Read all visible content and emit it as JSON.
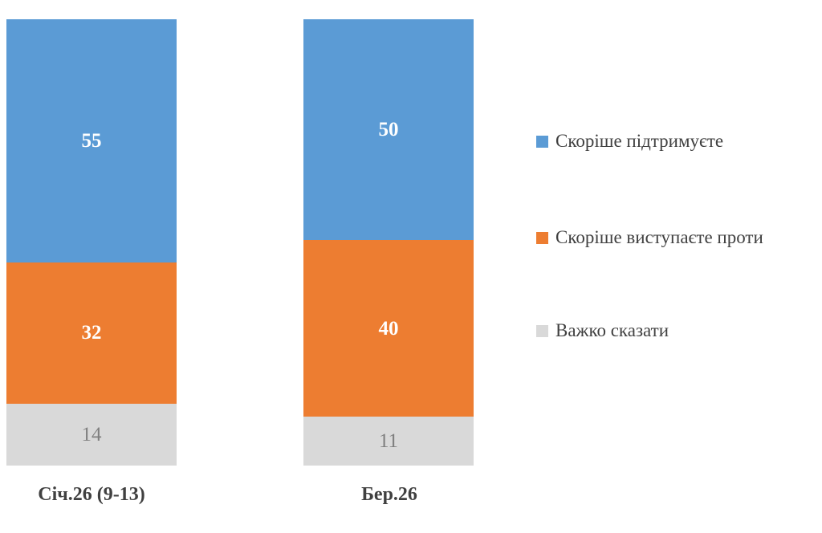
{
  "chart_data": {
    "type": "bar",
    "variant": "stacked-vertical",
    "title": "",
    "categories": [
      "Січ.26 (9-13)",
      "Бер.26"
    ],
    "series": [
      {
        "name": "Скоріше підтримуєте",
        "color": "#5b9bd5",
        "values": [
          55,
          50
        ]
      },
      {
        "name": "Скоріше виступаєте проти",
        "color": "#ed7d31",
        "values": [
          32,
          40
        ]
      },
      {
        "name": "Важко сказати",
        "color": "#d9d9d9",
        "values": [
          14,
          11
        ]
      }
    ],
    "axis_max": 101,
    "grid": false,
    "axes_visible": false,
    "legend_position": "right",
    "value_labels": "inside-center"
  },
  "styles": {
    "background": "#ffffff",
    "value_label_light": "#ffffff",
    "value_label_muted": "#7f7f7f",
    "category_text_color": "#404040",
    "legend_text_color": "#404040"
  }
}
